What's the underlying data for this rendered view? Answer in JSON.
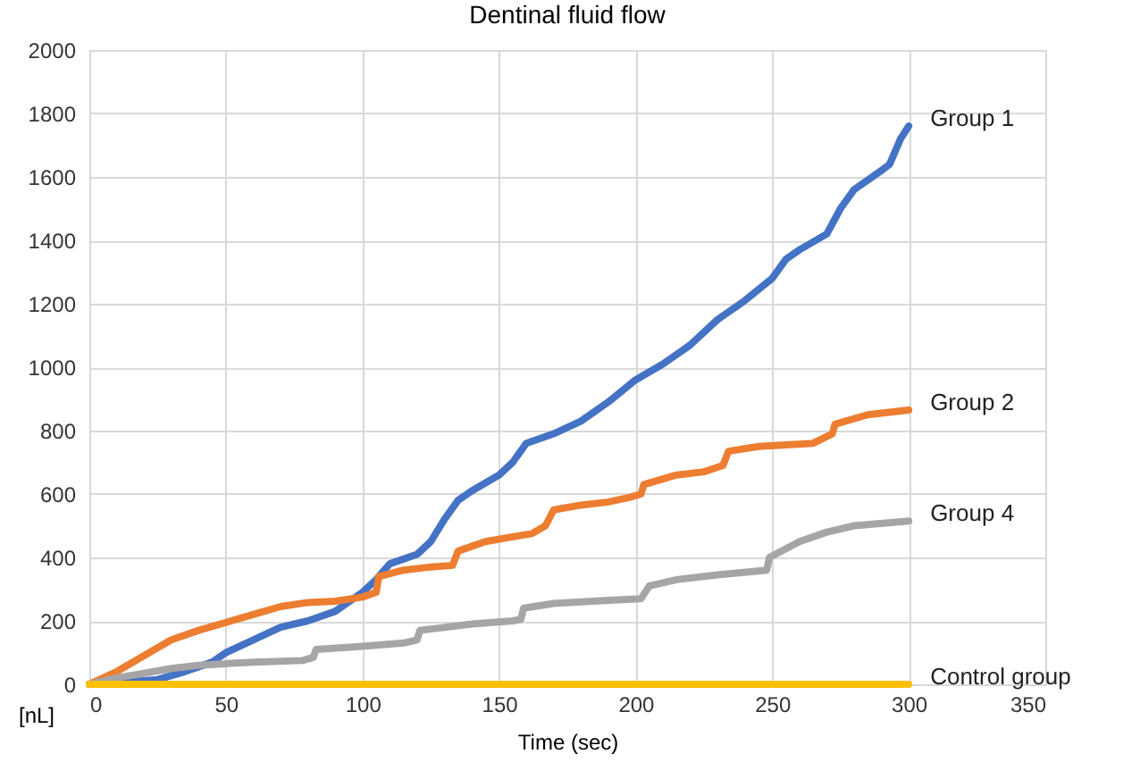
{
  "chart_data": {
    "type": "line",
    "title": "Dentinal fluid flow",
    "xlabel": "Time (sec)",
    "ylabel": "[nL]",
    "xlim": [
      0,
      350
    ],
    "xticks": [
      0,
      50,
      100,
      150,
      200,
      250,
      300,
      350
    ],
    "ylim": [
      0,
      2000
    ],
    "yticks": [
      0,
      200,
      400,
      600,
      800,
      1000,
      1200,
      1400,
      1600,
      1800,
      2000
    ],
    "grid": true,
    "legend": false,
    "marker": "none",
    "line_style": "solid",
    "series": [
      {
        "name": "Group 1",
        "color": "#4472c4",
        "x": [
          0,
          10,
          25,
          35,
          45,
          50,
          60,
          70,
          80,
          90,
          100,
          105,
          110,
          120,
          125,
          130,
          135,
          140,
          150,
          155,
          160,
          170,
          180,
          190,
          200,
          210,
          220,
          230,
          240,
          250,
          255,
          260,
          270,
          275,
          280,
          290,
          293,
          297,
          300
        ],
        "values": [
          0,
          5,
          15,
          40,
          70,
          100,
          140,
          180,
          200,
          230,
          290,
          330,
          380,
          410,
          450,
          520,
          580,
          610,
          660,
          700,
          760,
          790,
          830,
          890,
          960,
          1010,
          1070,
          1150,
          1210,
          1280,
          1340,
          1370,
          1420,
          1500,
          1560,
          1620,
          1640,
          1720,
          1760
        ]
      },
      {
        "name": "Group 2",
        "color": "#ed7d31",
        "x": [
          0,
          10,
          20,
          30,
          40,
          50,
          60,
          70,
          80,
          90,
          100,
          105,
          106,
          115,
          125,
          133,
          135,
          145,
          155,
          162,
          167,
          170,
          180,
          190,
          198,
          202,
          203,
          215,
          225,
          232,
          234,
          245,
          255,
          265,
          272,
          273,
          285,
          300
        ],
        "values": [
          0,
          40,
          90,
          140,
          170,
          195,
          220,
          245,
          258,
          262,
          275,
          290,
          340,
          360,
          370,
          375,
          420,
          450,
          465,
          475,
          500,
          550,
          565,
          575,
          590,
          600,
          630,
          660,
          670,
          690,
          735,
          750,
          755,
          760,
          790,
          820,
          850,
          865
        ]
      },
      {
        "name": "Group 4",
        "color": "#a5a5a5",
        "x": [
          0,
          10,
          20,
          30,
          40,
          50,
          60,
          78,
          82,
          83,
          100,
          115,
          120,
          121,
          140,
          155,
          158,
          159,
          170,
          190,
          202,
          205,
          215,
          230,
          248,
          249,
          260,
          270,
          280,
          300
        ],
        "values": [
          0,
          20,
          35,
          50,
          60,
          65,
          70,
          75,
          85,
          110,
          120,
          130,
          140,
          170,
          190,
          200,
          205,
          240,
          255,
          265,
          270,
          310,
          330,
          345,
          360,
          400,
          450,
          480,
          500,
          515
        ]
      },
      {
        "name": "Control group",
        "color": "#ffc000",
        "x": [
          0,
          300
        ],
        "values": [
          0,
          0
        ]
      }
    ]
  }
}
